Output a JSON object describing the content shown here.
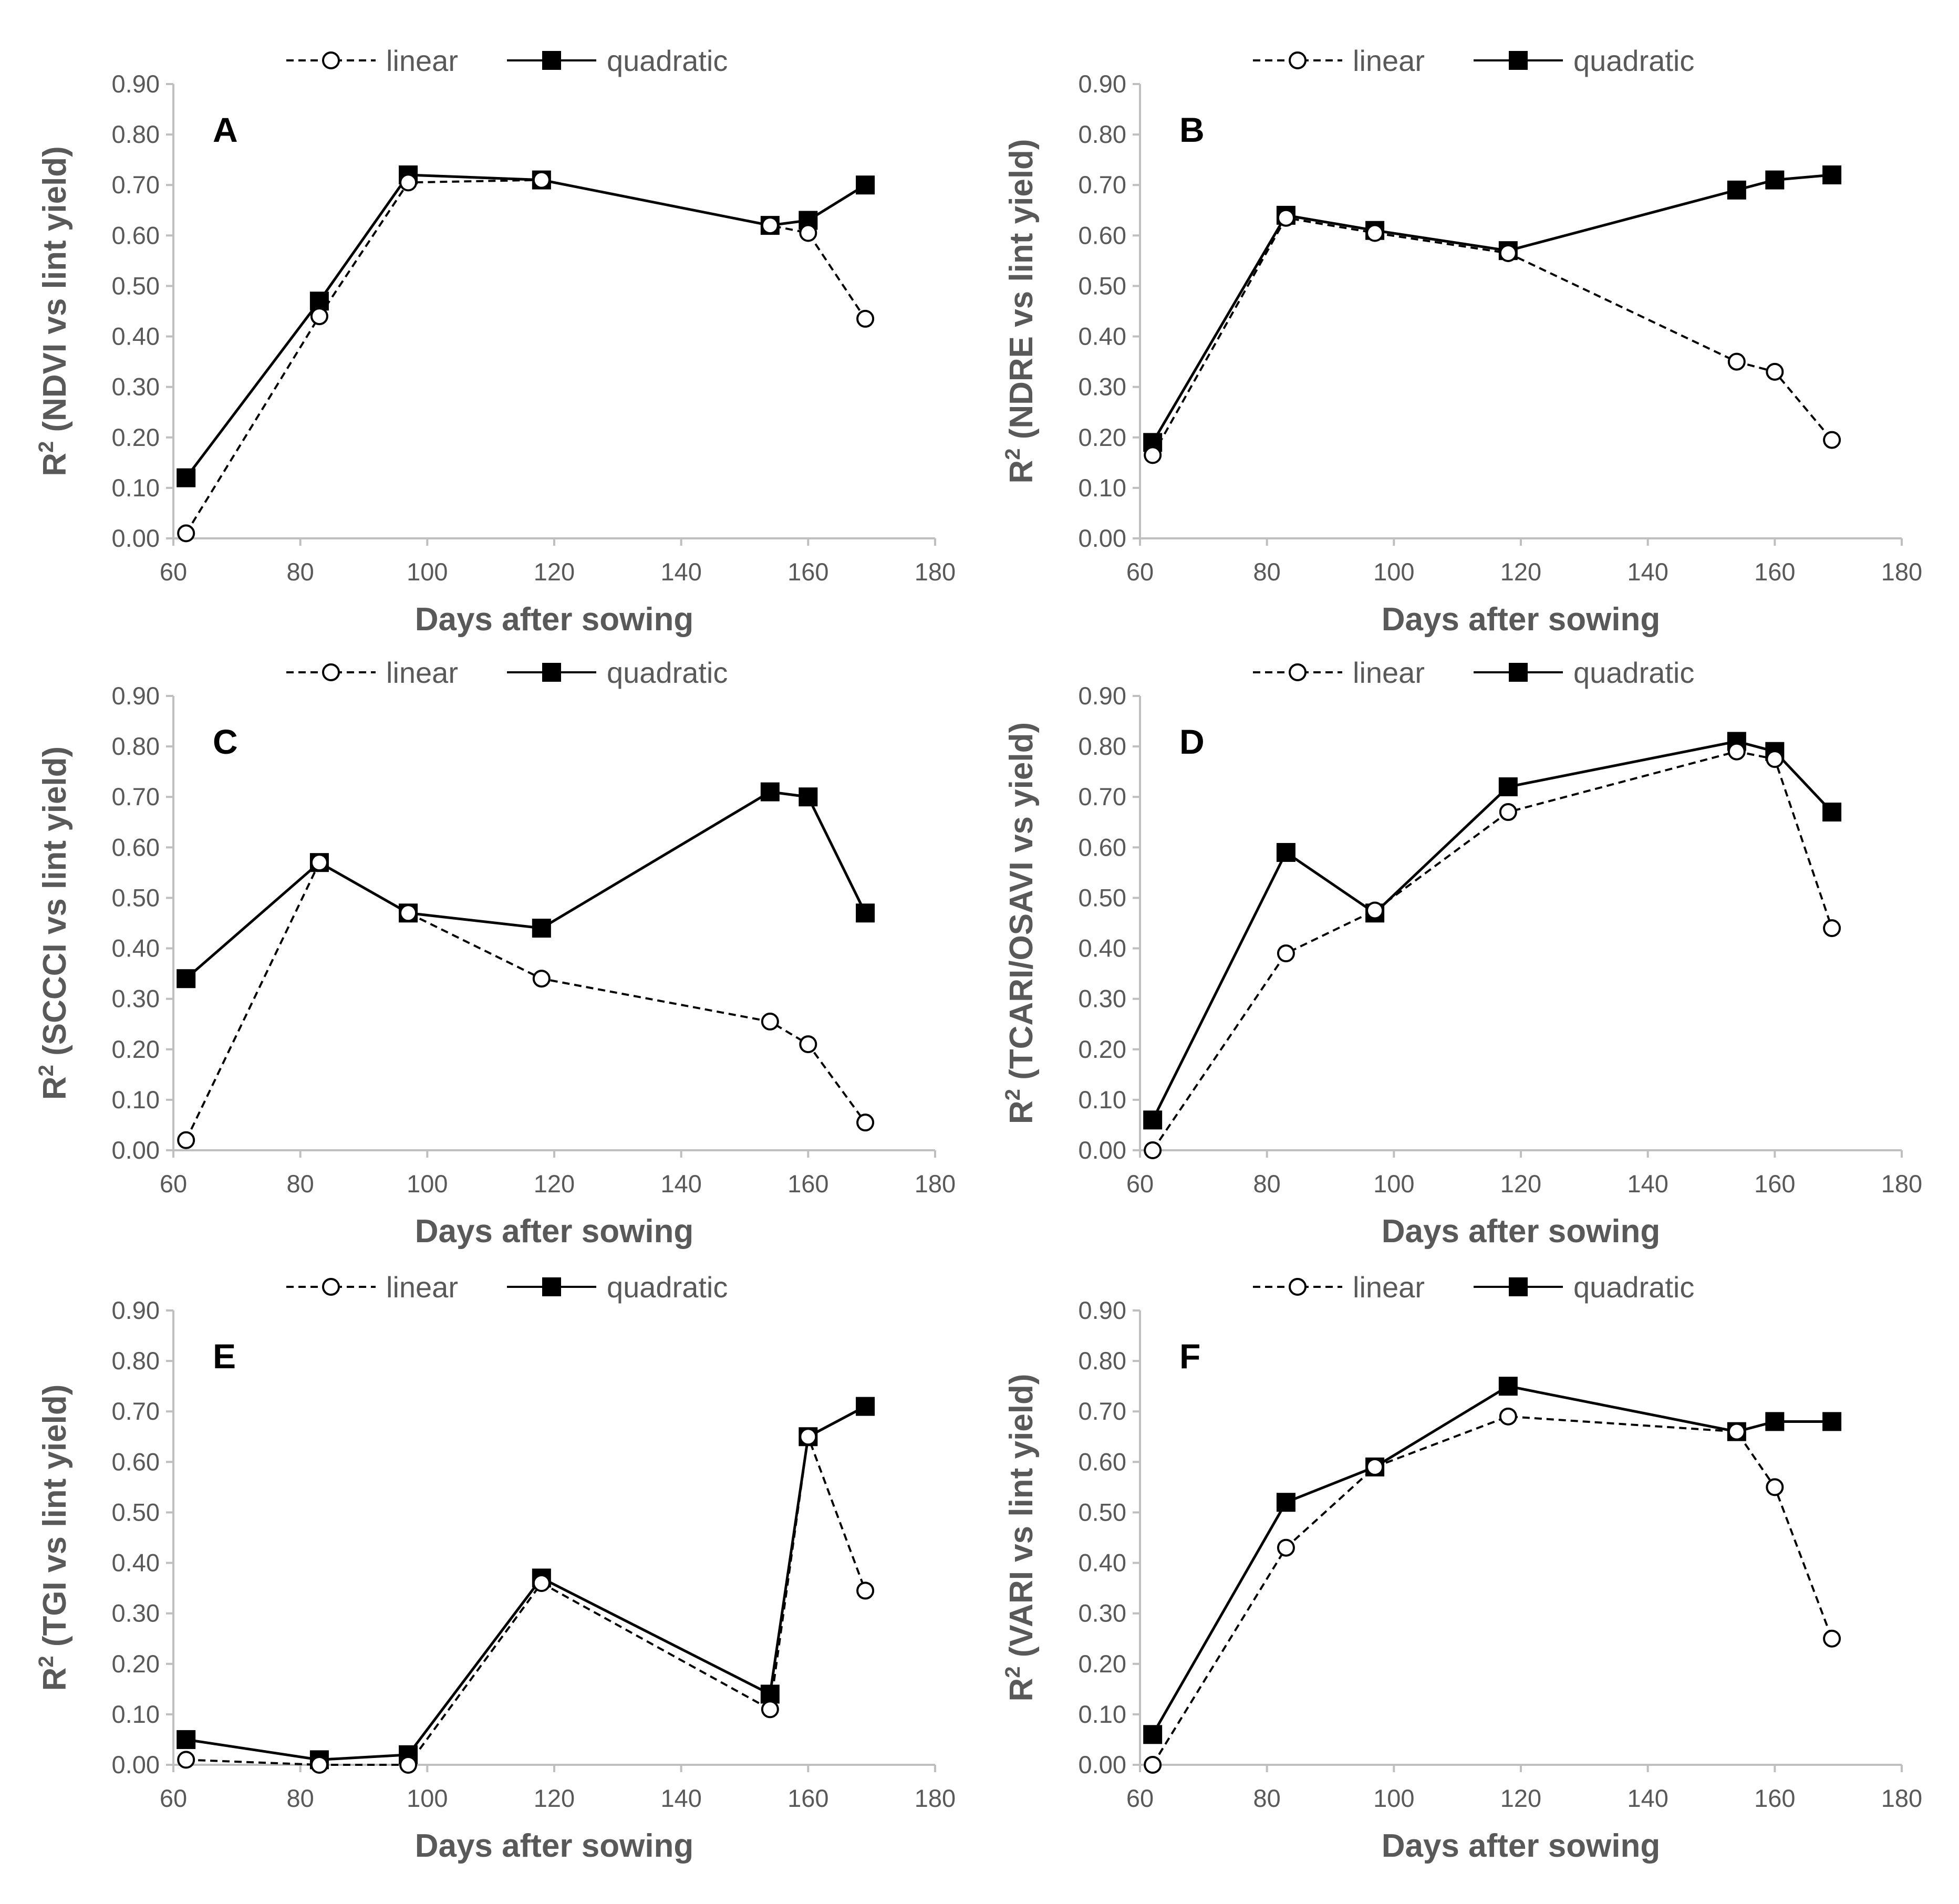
{
  "colors": {
    "series": "#000000",
    "marker_fill_open": "#ffffff",
    "axis": "#bfbfbf",
    "text": "#595959"
  },
  "chart_data": [
    {
      "type": "line",
      "panel_label": "A",
      "xlabel": "Days after sowing",
      "ylabel_prefix": "R",
      "ylabel_sup": "2",
      "ylabel_rest": " (NDVI vs lint yield)",
      "xlim": [
        60,
        180
      ],
      "ylim": [
        0,
        0.9
      ],
      "xticks": [
        "60",
        "80",
        "100",
        "120",
        "140",
        "160",
        "180"
      ],
      "yticks": [
        "0.00",
        "0.10",
        "0.20",
        "0.30",
        "0.40",
        "0.50",
        "0.60",
        "0.70",
        "0.80",
        "0.90"
      ],
      "legend": [
        "linear",
        "quadratic"
      ],
      "x": [
        62,
        83,
        97,
        118,
        154,
        160,
        169
      ],
      "series": [
        {
          "name": "linear",
          "values": [
            0.01,
            0.44,
            0.705,
            0.71,
            0.62,
            0.605,
            0.435
          ]
        },
        {
          "name": "quadratic",
          "values": [
            0.12,
            0.47,
            0.72,
            0.71,
            0.62,
            0.63,
            0.7
          ]
        }
      ]
    },
    {
      "type": "line",
      "panel_label": "B",
      "xlabel": "Days after sowing",
      "ylabel_prefix": "R",
      "ylabel_sup": "2",
      "ylabel_rest": " (NDRE vs lint yield)",
      "xlim": [
        60,
        180
      ],
      "ylim": [
        0,
        0.9
      ],
      "xticks": [
        "60",
        "80",
        "100",
        "120",
        "140",
        "160",
        "180"
      ],
      "yticks": [
        "0.00",
        "0.10",
        "0.20",
        "0.30",
        "0.40",
        "0.50",
        "0.60",
        "0.70",
        "0.80",
        "0.90"
      ],
      "legend": [
        "linear",
        "quadratic"
      ],
      "x": [
        62,
        83,
        97,
        118,
        154,
        160,
        169
      ],
      "series": [
        {
          "name": "linear",
          "values": [
            0.165,
            0.635,
            0.605,
            0.565,
            0.35,
            0.33,
            0.195
          ]
        },
        {
          "name": "quadratic",
          "values": [
            0.19,
            0.64,
            0.61,
            0.57,
            0.69,
            0.71,
            0.72
          ]
        }
      ]
    },
    {
      "type": "line",
      "panel_label": "C",
      "xlabel": "Days after sowing",
      "ylabel_prefix": "R",
      "ylabel_sup": "2",
      "ylabel_rest": " (SCCCI vs lint yield)",
      "xlim": [
        60,
        180
      ],
      "ylim": [
        0,
        0.9
      ],
      "xticks": [
        "60",
        "80",
        "100",
        "120",
        "140",
        "160",
        "180"
      ],
      "yticks": [
        "0.00",
        "0.10",
        "0.20",
        "0.30",
        "0.40",
        "0.50",
        "0.60",
        "0.70",
        "0.80",
        "0.90"
      ],
      "legend": [
        "linear",
        "quadratic"
      ],
      "x": [
        62,
        83,
        97,
        118,
        154,
        160,
        169
      ],
      "series": [
        {
          "name": "linear",
          "values": [
            0.02,
            0.57,
            0.47,
            0.34,
            0.255,
            0.21,
            0.055
          ]
        },
        {
          "name": "quadratic",
          "values": [
            0.34,
            0.57,
            0.47,
            0.44,
            0.71,
            0.7,
            0.47
          ]
        }
      ]
    },
    {
      "type": "line",
      "panel_label": "D",
      "xlabel": "Days after sowing",
      "ylabel_prefix": "R",
      "ylabel_sup": "2",
      "ylabel_rest": " (TCARI/OSAVI vs yield)",
      "xlim": [
        60,
        180
      ],
      "ylim": [
        0,
        0.9
      ],
      "xticks": [
        "60",
        "80",
        "100",
        "120",
        "140",
        "160",
        "180"
      ],
      "yticks": [
        "0.00",
        "0.10",
        "0.20",
        "0.30",
        "0.40",
        "0.50",
        "0.60",
        "0.70",
        "0.80",
        "0.90"
      ],
      "legend": [
        "linear",
        "quadratic"
      ],
      "x": [
        62,
        83,
        97,
        118,
        154,
        160,
        169
      ],
      "series": [
        {
          "name": "linear",
          "values": [
            0.0,
            0.39,
            0.475,
            0.67,
            0.79,
            0.775,
            0.44
          ]
        },
        {
          "name": "quadratic",
          "values": [
            0.06,
            0.59,
            0.47,
            0.72,
            0.81,
            0.79,
            0.67
          ]
        }
      ]
    },
    {
      "type": "line",
      "panel_label": "E",
      "xlabel": "Days after sowing",
      "ylabel_prefix": "R",
      "ylabel_sup": "2",
      "ylabel_rest": " (TGI vs lint yield)",
      "xlim": [
        60,
        180
      ],
      "ylim": [
        0,
        0.9
      ],
      "xticks": [
        "60",
        "80",
        "100",
        "120",
        "140",
        "160",
        "180"
      ],
      "yticks": [
        "0.00",
        "0.10",
        "0.20",
        "0.30",
        "0.40",
        "0.50",
        "0.60",
        "0.70",
        "0.80",
        "0.90"
      ],
      "legend": [
        "linear",
        "quadratic"
      ],
      "x": [
        62,
        83,
        97,
        118,
        154,
        160,
        169
      ],
      "series": [
        {
          "name": "linear",
          "values": [
            0.01,
            0.0,
            0.0,
            0.36,
            0.11,
            0.65,
            0.345
          ]
        },
        {
          "name": "quadratic",
          "values": [
            0.05,
            0.01,
            0.02,
            0.37,
            0.14,
            0.65,
            0.71
          ]
        }
      ]
    },
    {
      "type": "line",
      "panel_label": "F",
      "xlabel": "Days after sowing",
      "ylabel_prefix": "R",
      "ylabel_sup": "2",
      "ylabel_rest": " (VARI vs lint yield)",
      "xlim": [
        60,
        180
      ],
      "ylim": [
        0,
        0.9
      ],
      "xticks": [
        "60",
        "80",
        "100",
        "120",
        "140",
        "160",
        "180"
      ],
      "yticks": [
        "0.00",
        "0.10",
        "0.20",
        "0.30",
        "0.40",
        "0.50",
        "0.60",
        "0.70",
        "0.80",
        "0.90"
      ],
      "legend": [
        "linear",
        "quadratic"
      ],
      "x": [
        62,
        83,
        97,
        118,
        154,
        160,
        169
      ],
      "series": [
        {
          "name": "linear",
          "values": [
            0.0,
            0.43,
            0.59,
            0.69,
            0.66,
            0.55,
            0.25
          ]
        },
        {
          "name": "quadratic",
          "values": [
            0.06,
            0.52,
            0.59,
            0.75,
            0.66,
            0.68,
            0.68
          ]
        }
      ]
    }
  ]
}
